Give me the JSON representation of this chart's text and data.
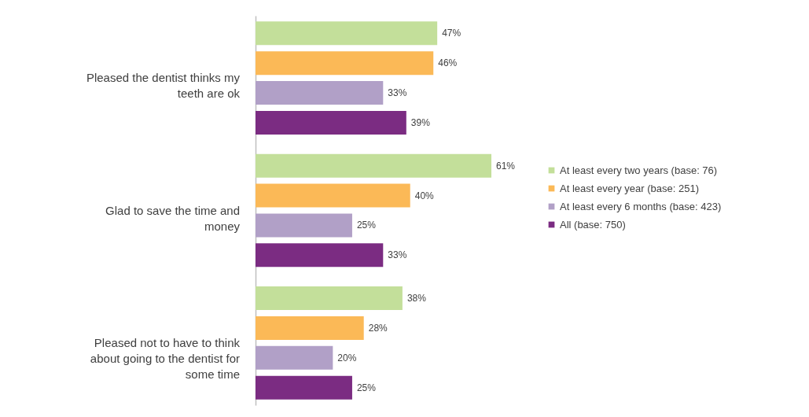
{
  "chart_data": {
    "type": "bar",
    "orientation": "horizontal",
    "legend": "right",
    "categories": [
      "Pleased the dentist thinks my teeth are ok",
      "Glad to save the time and money",
      "Pleased not to have to think about going to the dentist for some time"
    ],
    "series": [
      {
        "name": "At least every two years (base: 76)",
        "color": "#c3df9a",
        "values": [
          47,
          61,
          38
        ],
        "value_labels": [
          "47%",
          "61%",
          "38%"
        ]
      },
      {
        "name": "At least every year (base: 251)",
        "color": "#fbb957",
        "values": [
          46,
          40,
          28
        ],
        "value_labels": [
          "46%",
          "40%",
          "28%"
        ]
      },
      {
        "name": "At least every 6 months (base: 423)",
        "color": "#b1a0c7",
        "values": [
          33,
          25,
          20
        ],
        "value_labels": [
          "33%",
          "25%",
          "20%"
        ]
      },
      {
        "name": "All (base: 750)",
        "color": "#7b2c82",
        "values": [
          39,
          33,
          25
        ],
        "value_labels": [
          "39%",
          "33%",
          "25%"
        ]
      }
    ]
  }
}
